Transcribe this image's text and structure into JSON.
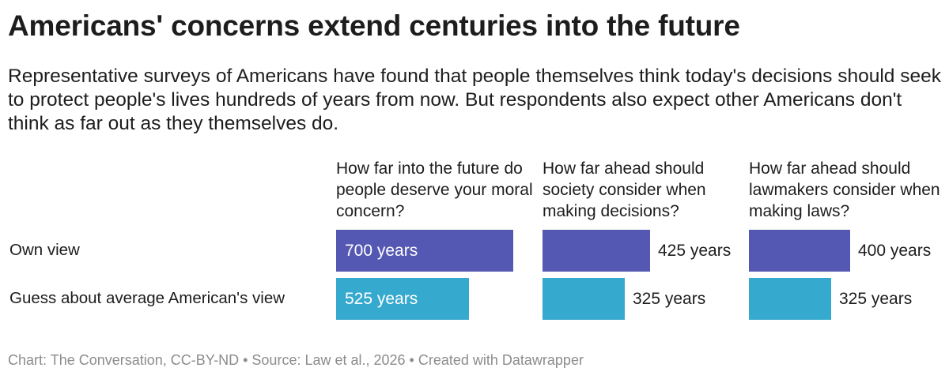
{
  "title": "Americans' concerns extend centuries into the future",
  "subtitle": "Representative surveys of Americans have found that people themselves think today's decisions should seek to protect people's lives hundreds of years from now. But respondents also expect other Americans don't think as far out as they themselves do.",
  "footer": "Chart: The Conversation, CC-BY-ND • Source: Law et al., 2026 • Created with Datawrapper",
  "colors": {
    "own": "#5458b3",
    "guess": "#36a9cf"
  },
  "chart_data": {
    "type": "bar",
    "orientation": "horizontal",
    "unit": "years",
    "xlim": [
      0,
      700
    ],
    "rows": [
      "Own view",
      "Guess about average American's view"
    ],
    "columns": [
      {
        "header": "How far into the future do people deserve your moral concern?",
        "values": [
          700,
          525
        ],
        "labels": [
          "700 years",
          "525 years"
        ]
      },
      {
        "header": "How far ahead should society consider when making decisions?",
        "values": [
          425,
          325
        ],
        "labels": [
          "425 years",
          "325 years"
        ]
      },
      {
        "header": "How far ahead should lawmakers consider when making laws?",
        "values": [
          400,
          325
        ],
        "labels": [
          "400 years",
          "325 years"
        ]
      }
    ]
  }
}
